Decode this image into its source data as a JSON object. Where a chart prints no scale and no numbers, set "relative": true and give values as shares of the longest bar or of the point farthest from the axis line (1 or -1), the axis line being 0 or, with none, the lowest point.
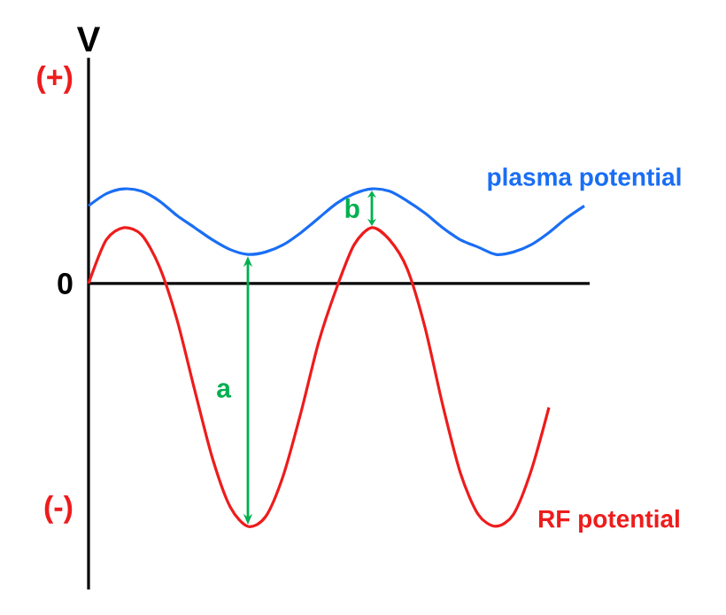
{
  "chart_data": {
    "type": "line",
    "ylabel": "V",
    "relative": true,
    "categories": [
      null,
      null,
      null,
      null,
      null,
      null,
      null,
      null,
      null,
      null,
      null,
      null,
      null,
      null,
      null,
      null,
      null,
      null,
      null,
      null,
      null,
      null,
      null,
      null,
      null,
      null,
      null,
      null,
      null
    ],
    "series": [
      {
        "name": "plasma potential",
        "color": "#1a6ef5",
        "values": [
          0.32,
          0.37,
          0.39,
          0.38,
          0.34,
          0.28,
          0.23,
          0.18,
          0.14,
          0.12,
          0.13,
          0.16,
          0.21,
          0.27,
          0.33,
          0.37,
          0.39,
          0.38,
          0.34,
          0.29,
          0.23,
          0.18,
          0.15,
          0.12,
          0.13,
          0.16,
          0.21,
          0.27,
          0.32
        ]
      },
      {
        "name": "RF potential",
        "color": "#ee1c1c",
        "values": [
          0,
          0.18,
          0.23,
          0.2,
          0.07,
          -0.15,
          -0.44,
          -0.72,
          -0.92,
          -1,
          -0.96,
          -0.79,
          -0.53,
          -0.24,
          -0.02,
          0.16,
          0.23,
          0.18,
          0.06,
          -0.18,
          -0.5,
          -0.78,
          -0.95,
          -1,
          -0.95,
          -0.77,
          -0.51,
          null,
          null
        ]
      }
    ],
    "annotations": [
      "(+)",
      "0",
      "(-)",
      "a",
      "b"
    ],
    "line_style": "solid",
    "marker": "none",
    "legend": false
  }
}
